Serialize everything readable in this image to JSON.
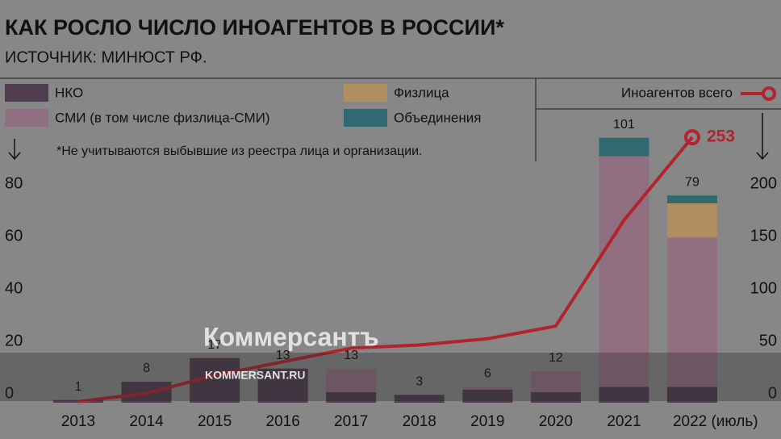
{
  "chart_data": {
    "type": "bar",
    "title": "КАК РОСЛО ЧИСЛО ИНОАГЕНТОВ В РОССИИ*",
    "subtitle": "ИСТОЧНИК: МИНЮСТ РФ.",
    "note": "*Не учитываются выбывшие из реестра лица и организации.",
    "categories": [
      "2013",
      "2014",
      "2015",
      "2016",
      "2017",
      "2018",
      "2019",
      "2020",
      "2021",
      "2022 (июль)"
    ],
    "series": [
      {
        "name": "НКО",
        "color": "#4f3c4f",
        "values": [
          1,
          8,
          17,
          13,
          4,
          3,
          5,
          4,
          6,
          6
        ]
      },
      {
        "name": "СМИ (в том числе физлица-СМИ)",
        "color": "#8f6f80",
        "values": [
          0,
          0,
          0,
          0,
          9,
          0,
          1,
          8,
          88,
          57
        ]
      },
      {
        "name": "Физлица",
        "color": "#b08e5e",
        "values": [
          0,
          0,
          0,
          0,
          0,
          0,
          0,
          0,
          0,
          13
        ]
      },
      {
        "name": "Объединения",
        "color": "#2f6a70",
        "values": [
          0,
          0,
          0,
          0,
          0,
          0,
          0,
          0,
          7,
          3
        ]
      },
      {
        "name": "Иноагентов всего",
        "color": "#b3232e",
        "axis": "y2",
        "values": [
          1,
          9,
          26,
          39,
          52,
          55,
          61,
          73,
          174,
          253
        ]
      }
    ],
    "totals": [
      1,
      8,
      17,
      13,
      13,
      3,
      6,
      12,
      101,
      79
    ],
    "ylim": [
      0,
      100
    ],
    "yticks": [
      0,
      20,
      40,
      60,
      80
    ],
    "y2lim": [
      0,
      250
    ],
    "y2ticks": [
      0,
      50,
      100,
      150,
      200
    ],
    "grid": false
  },
  "watermark": {
    "name": "Коммерсантъ",
    "url": "KOMMERSANT.RU"
  }
}
